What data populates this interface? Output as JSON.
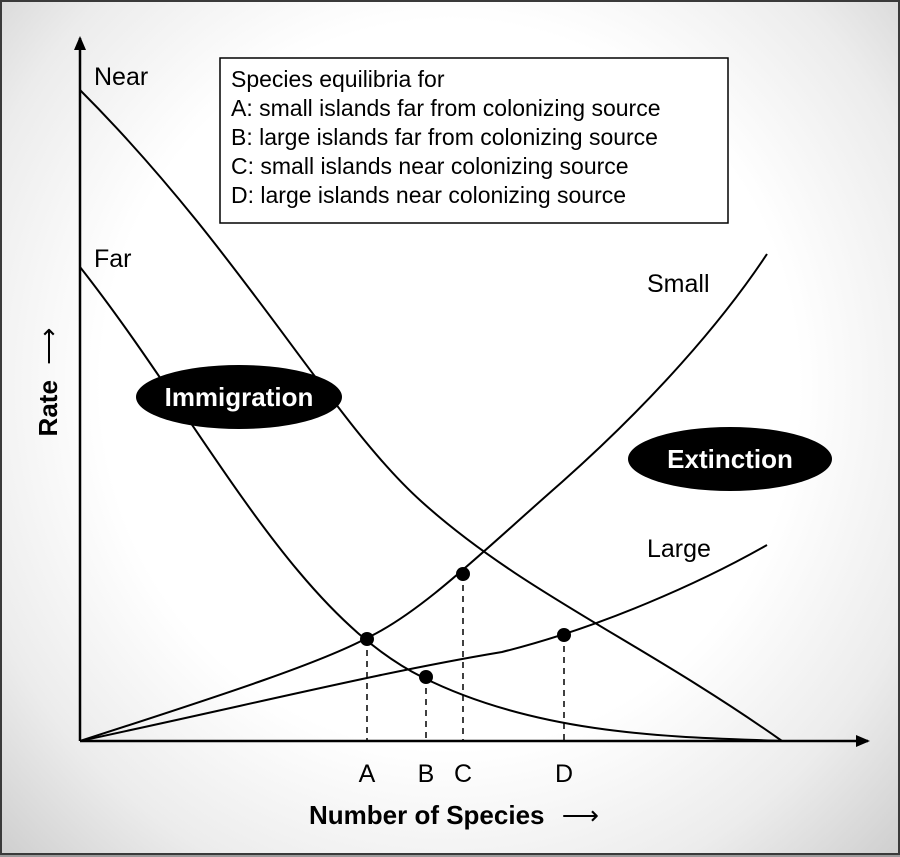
{
  "axes": {
    "x_label": "Number of Species",
    "x_arrow": "⟶",
    "y_label": "Rate",
    "y_arrow": "⟶"
  },
  "curves": {
    "immigration_near": "Near",
    "immigration_far": "Far",
    "extinction_small": "Small",
    "extinction_large": "Large"
  },
  "badges": {
    "immigration": "Immigration",
    "extinction": "Extinction"
  },
  "equilibria": [
    "A",
    "B",
    "C",
    "D"
  ],
  "legend": {
    "title": "Species equilibria for",
    "items": [
      "A: small islands far from colonizing source",
      "B: large islands far from colonizing source",
      "C: small islands near colonizing source",
      "D: large islands near colonizing source"
    ]
  },
  "colors": {
    "ink": "#000000",
    "badge_fill": "#000000",
    "badge_text": "#ffffff"
  }
}
